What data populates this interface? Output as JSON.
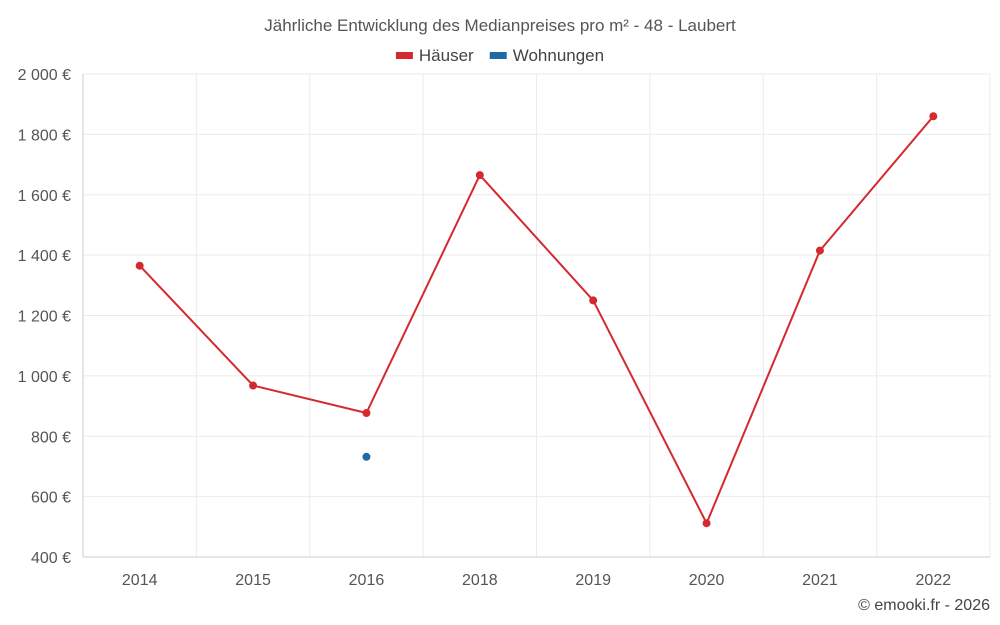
{
  "chart_data": {
    "type": "line",
    "title": "Jährliche Entwicklung des Medianpreises pro m² - 48 - Laubert",
    "categories": [
      "2014",
      "2015",
      "2016",
      "2018",
      "2019",
      "2020",
      "2021",
      "2022"
    ],
    "series": [
      {
        "name": "Häuser",
        "color": "#d42a2f",
        "values": [
          1365,
          968,
          877,
          1665,
          1250,
          512,
          1415,
          1860
        ]
      },
      {
        "name": "Wohnungen",
        "color": "#1f6aa5",
        "values": [
          null,
          null,
          732,
          null,
          null,
          null,
          null,
          null
        ]
      }
    ],
    "ylim": [
      400,
      2000
    ],
    "yticks": [
      400,
      600,
      800,
      1000,
      1200,
      1400,
      1600,
      1800,
      2000
    ],
    "ytick_labels": [
      "400 €",
      "600 €",
      "800 €",
      "1 000 €",
      "1 200 €",
      "1 400 €",
      "1 600 €",
      "1 800 €",
      "2 000 €"
    ],
    "xlabel": "",
    "ylabel": "",
    "grid": true,
    "legend_position": "top-center"
  },
  "credit": "© emooki.fr - 2026"
}
